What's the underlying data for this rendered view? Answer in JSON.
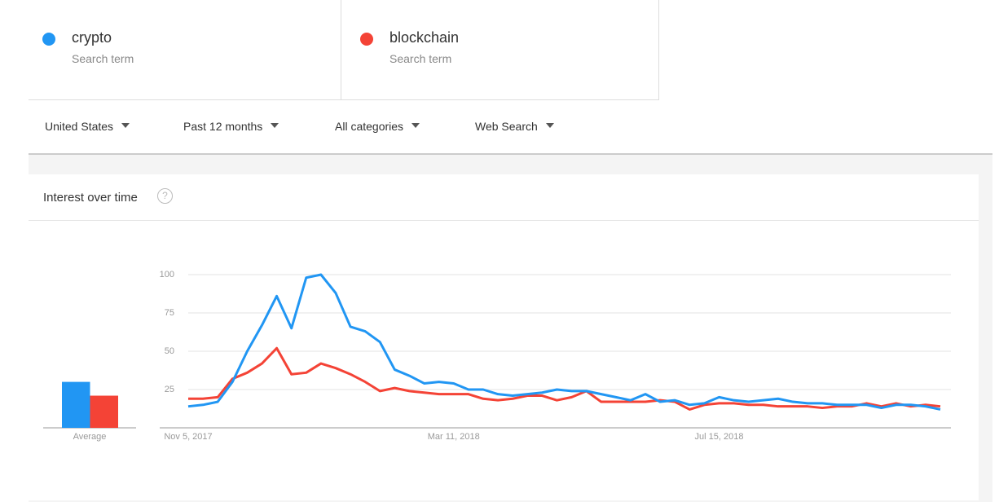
{
  "terms": [
    {
      "name": "crypto",
      "subtitle": "Search term"
    },
    {
      "name": "blockchain",
      "subtitle": "Search term"
    }
  ],
  "filters": [
    "United States",
    "Past 12 months",
    "All categories",
    "Web Search"
  ],
  "panel": {
    "title": "Interest over time"
  },
  "chart_data": {
    "type": "line",
    "categories": [
      "Nov 5, 2017",
      null,
      null,
      null,
      null,
      null,
      null,
      null,
      null,
      null,
      null,
      null,
      null,
      null,
      null,
      null,
      null,
      null,
      "Mar 11, 2018",
      null,
      null,
      null,
      null,
      null,
      null,
      null,
      null,
      null,
      null,
      null,
      null,
      null,
      null,
      null,
      null,
      null,
      "Jul 15, 2018",
      null,
      null,
      null,
      null,
      null,
      null,
      null,
      null,
      null,
      null,
      null,
      null,
      null,
      null,
      null
    ],
    "series": [
      {
        "name": "crypto",
        "color": "#2196f3",
        "average": 30,
        "values": [
          14,
          15,
          17,
          30,
          50,
          67,
          86,
          65,
          98,
          100,
          88,
          66,
          63,
          56,
          38,
          34,
          29,
          30,
          29,
          25,
          25,
          22,
          21,
          22,
          23,
          25,
          24,
          24,
          22,
          20,
          18,
          22,
          17,
          18,
          15,
          16,
          20,
          18,
          17,
          18,
          19,
          17,
          16,
          16,
          15,
          15,
          15,
          13,
          15,
          15,
          14,
          12
        ]
      },
      {
        "name": "blockchain",
        "color": "#f44336",
        "average": 21,
        "values": [
          19,
          19,
          20,
          32,
          36,
          42,
          52,
          35,
          36,
          42,
          39,
          35,
          30,
          24,
          26,
          24,
          23,
          22,
          22,
          22,
          19,
          18,
          19,
          21,
          21,
          18,
          20,
          24,
          17,
          17,
          17,
          17,
          18,
          17,
          12,
          15,
          16,
          16,
          15,
          15,
          14,
          14,
          14,
          13,
          14,
          14,
          16,
          14,
          16,
          14,
          15,
          14
        ]
      }
    ],
    "average_label": "Average",
    "ylim": [
      0,
      100
    ],
    "yticks": [
      25,
      50,
      75,
      100
    ],
    "grid": true
  }
}
